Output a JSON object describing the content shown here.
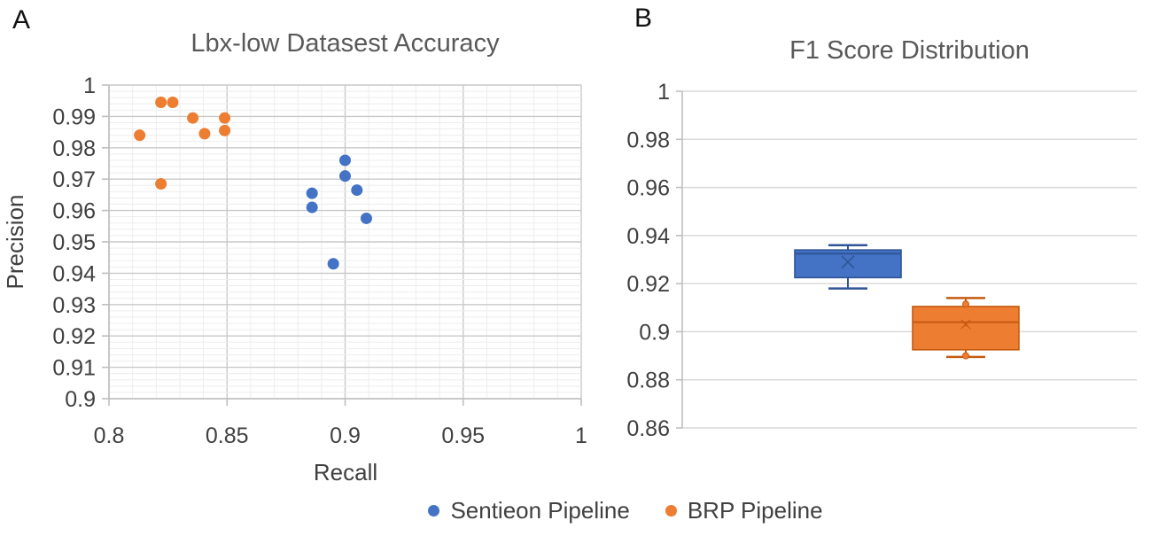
{
  "panels": {
    "a": {
      "label": "A",
      "title": "Lbx-low Datasest Accuracy",
      "xlabel": "Recall",
      "ylabel": "Precision"
    },
    "b": {
      "label": "B",
      "title": "F1 Score Distribution"
    }
  },
  "legend": {
    "items": [
      {
        "label": "Sentieon Pipeline",
        "color": "#4472C4"
      },
      {
        "label": "BRP Pipeline",
        "color": "#ED7D31"
      }
    ]
  },
  "colors": {
    "sentieon_blue": "#4472C4",
    "sentieon_blue_dark": "#2F5597",
    "brp_orange": "#ED7D31",
    "brp_orange_dark": "#C55A11",
    "title_gray": "#595959",
    "tick_gray": "#404040",
    "axis_line": "#BFBFBF",
    "grid_major": "#C9C9C9",
    "grid_minor": "#EDEDED",
    "grid_panel_b": "#D9D9D9"
  },
  "chart_data": [
    {
      "type": "scatter",
      "title": "Lbx-low Datasest Accuracy",
      "xlabel": "Recall",
      "ylabel": "Precision",
      "xlim": [
        0.8,
        1.0
      ],
      "ylim": [
        0.9,
        1.0
      ],
      "x_ticks": [
        0.8,
        0.85,
        0.9,
        0.95,
        1
      ],
      "x_tick_labels": [
        "0.8",
        "0.85",
        "0.9",
        "0.95",
        "1"
      ],
      "y_ticks": [
        0.9,
        0.91,
        0.92,
        0.93,
        0.94,
        0.95,
        0.96,
        0.97,
        0.98,
        0.99,
        1
      ],
      "y_tick_labels": [
        "0.9",
        "0.91",
        "0.92",
        "0.93",
        "0.94",
        "0.95",
        "0.96",
        "0.97",
        "0.98",
        "0.99",
        "1"
      ],
      "grid": {
        "x_minor_step": 0.01,
        "x_major_step": 0.05,
        "y_minor_step": 0.002,
        "y_major_step": 0.01
      },
      "legend_position": "bottom",
      "series": [
        {
          "name": "Sentieon Pipeline",
          "color": "#4472C4",
          "points": [
            [
              0.9,
              0.976
            ],
            [
              0.9,
              0.971
            ],
            [
              0.905,
              0.9665
            ],
            [
              0.886,
              0.9655
            ],
            [
              0.886,
              0.961
            ],
            [
              0.909,
              0.9575
            ],
            [
              0.895,
              0.943
            ]
          ]
        },
        {
          "name": "BRP Pipeline",
          "color": "#ED7D31",
          "points": [
            [
              0.813,
              0.984
            ],
            [
              0.822,
              0.9945
            ],
            [
              0.827,
              0.9945
            ],
            [
              0.8355,
              0.9895
            ],
            [
              0.849,
              0.9895
            ],
            [
              0.8405,
              0.9845
            ],
            [
              0.849,
              0.9855
            ],
            [
              0.822,
              0.9685
            ]
          ]
        }
      ]
    },
    {
      "type": "box",
      "title": "F1 Score Distribution",
      "ylabel": "",
      "ylim": [
        0.86,
        1.0
      ],
      "y_ticks": [
        0.86,
        0.88,
        0.9,
        0.92,
        0.94,
        0.96,
        0.98,
        1
      ],
      "y_tick_labels": [
        "0.86",
        "0.88",
        "0.9",
        "0.92",
        "0.94",
        "0.96",
        "0.98",
        "1"
      ],
      "grid": {
        "y_major_step": 0.02
      },
      "legend_position": "bottom",
      "boxes": [
        {
          "name": "Sentieon Pipeline",
          "fill": "#4472C4",
          "stroke": "#2F5597",
          "min": 0.918,
          "q1": 0.9225,
          "median": 0.9325,
          "mean": 0.929,
          "q3": 0.934,
          "max": 0.936,
          "points": []
        },
        {
          "name": "BRP Pipeline",
          "fill": "#ED7D31",
          "stroke": "#C55A11",
          "min": 0.8895,
          "q1": 0.8925,
          "median": 0.904,
          "mean": 0.903,
          "q3": 0.9105,
          "max": 0.914,
          "points": [
            {
              "value": 0.9115,
              "style": "filled"
            },
            {
              "value": 0.906,
              "style": "open"
            },
            {
              "value": 0.9005,
              "style": "open"
            },
            {
              "value": 0.89,
              "style": "filled"
            }
          ]
        }
      ]
    }
  ]
}
